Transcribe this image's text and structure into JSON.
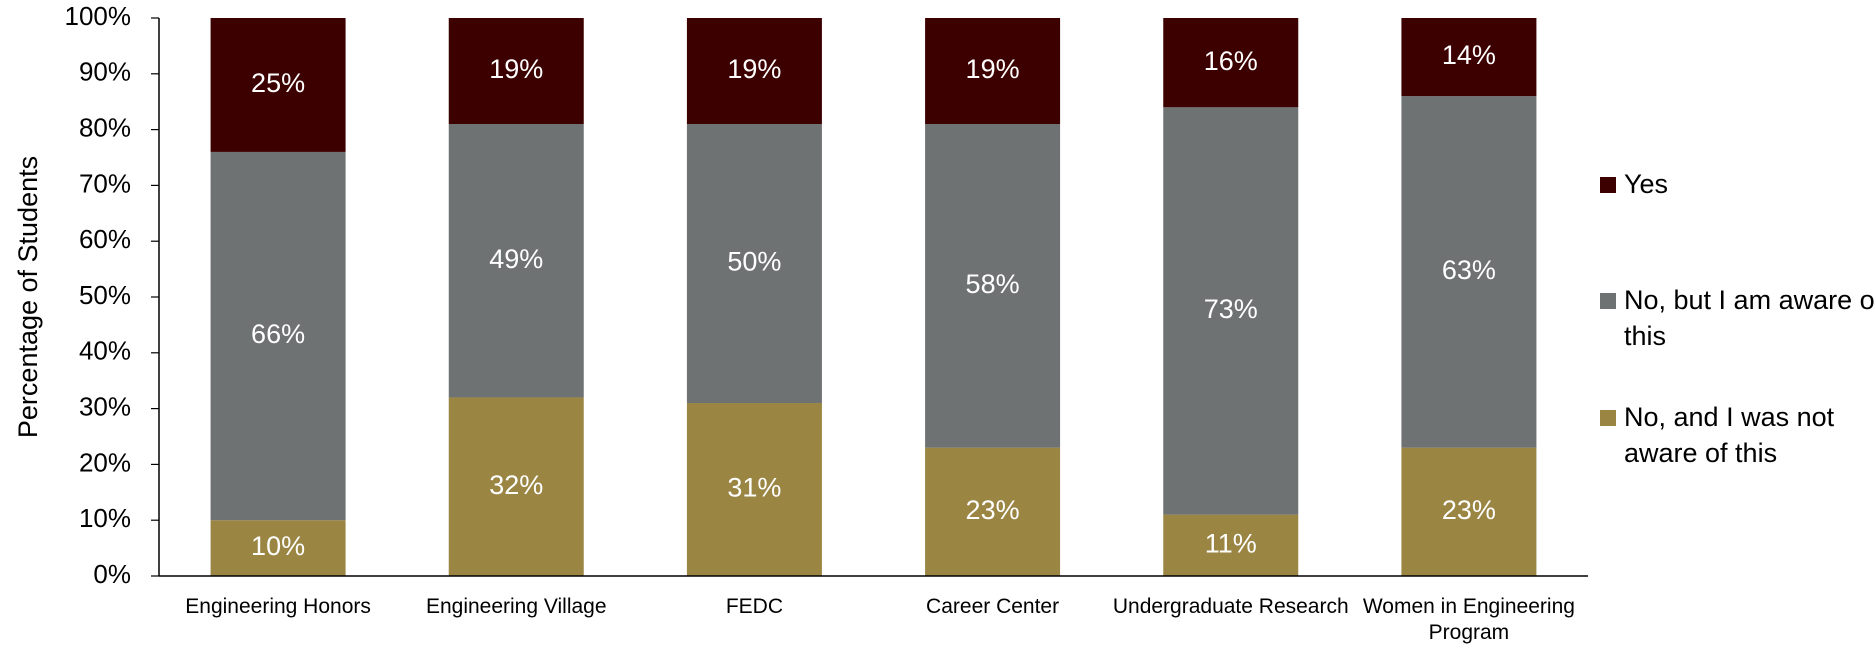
{
  "chart_data": {
    "type": "stacked_bar",
    "y_label": "Percentage of Students",
    "categories": [
      "Engineering Honors",
      "Engineering Village",
      "FEDC",
      "Career Center",
      "Undergraduate Research",
      "Women in Engineering Program"
    ],
    "series": [
      {
        "name": "No, and I was not aware of this",
        "color": "#9a8543",
        "values": [
          10,
          32,
          31,
          23,
          11,
          23
        ],
        "value_labels": [
          "10%",
          "32%",
          "31%",
          "23%",
          "11%",
          "23%"
        ]
      },
      {
        "name": "No, but I am aware of this",
        "color": "#6f7272",
        "values": [
          66,
          49,
          50,
          58,
          73,
          63
        ],
        "value_labels": [
          "66%",
          "49%",
          "50%",
          "58%",
          "73%",
          "63%"
        ]
      },
      {
        "name": "Yes",
        "color": "#3d0000",
        "values": [
          25,
          19,
          19,
          19,
          16,
          14
        ],
        "value_labels": [
          "25%",
          "19%",
          "19%",
          "19%",
          "16%",
          "14%"
        ]
      }
    ],
    "ylim": [
      0,
      100
    ],
    "yticks": [
      {
        "value": 0,
        "label": "0%"
      },
      {
        "value": 10,
        "label": "10%"
      },
      {
        "value": 20,
        "label": "20%"
      },
      {
        "value": 30,
        "label": "30%"
      },
      {
        "value": 40,
        "label": "40%"
      },
      {
        "value": 50,
        "label": "50%"
      },
      {
        "value": 60,
        "label": "60%"
      },
      {
        "value": 70,
        "label": "70%"
      },
      {
        "value": 80,
        "label": "80%"
      },
      {
        "value": 90,
        "label": "90%"
      },
      {
        "value": 100,
        "label": "100%"
      }
    ],
    "legend": "right"
  }
}
